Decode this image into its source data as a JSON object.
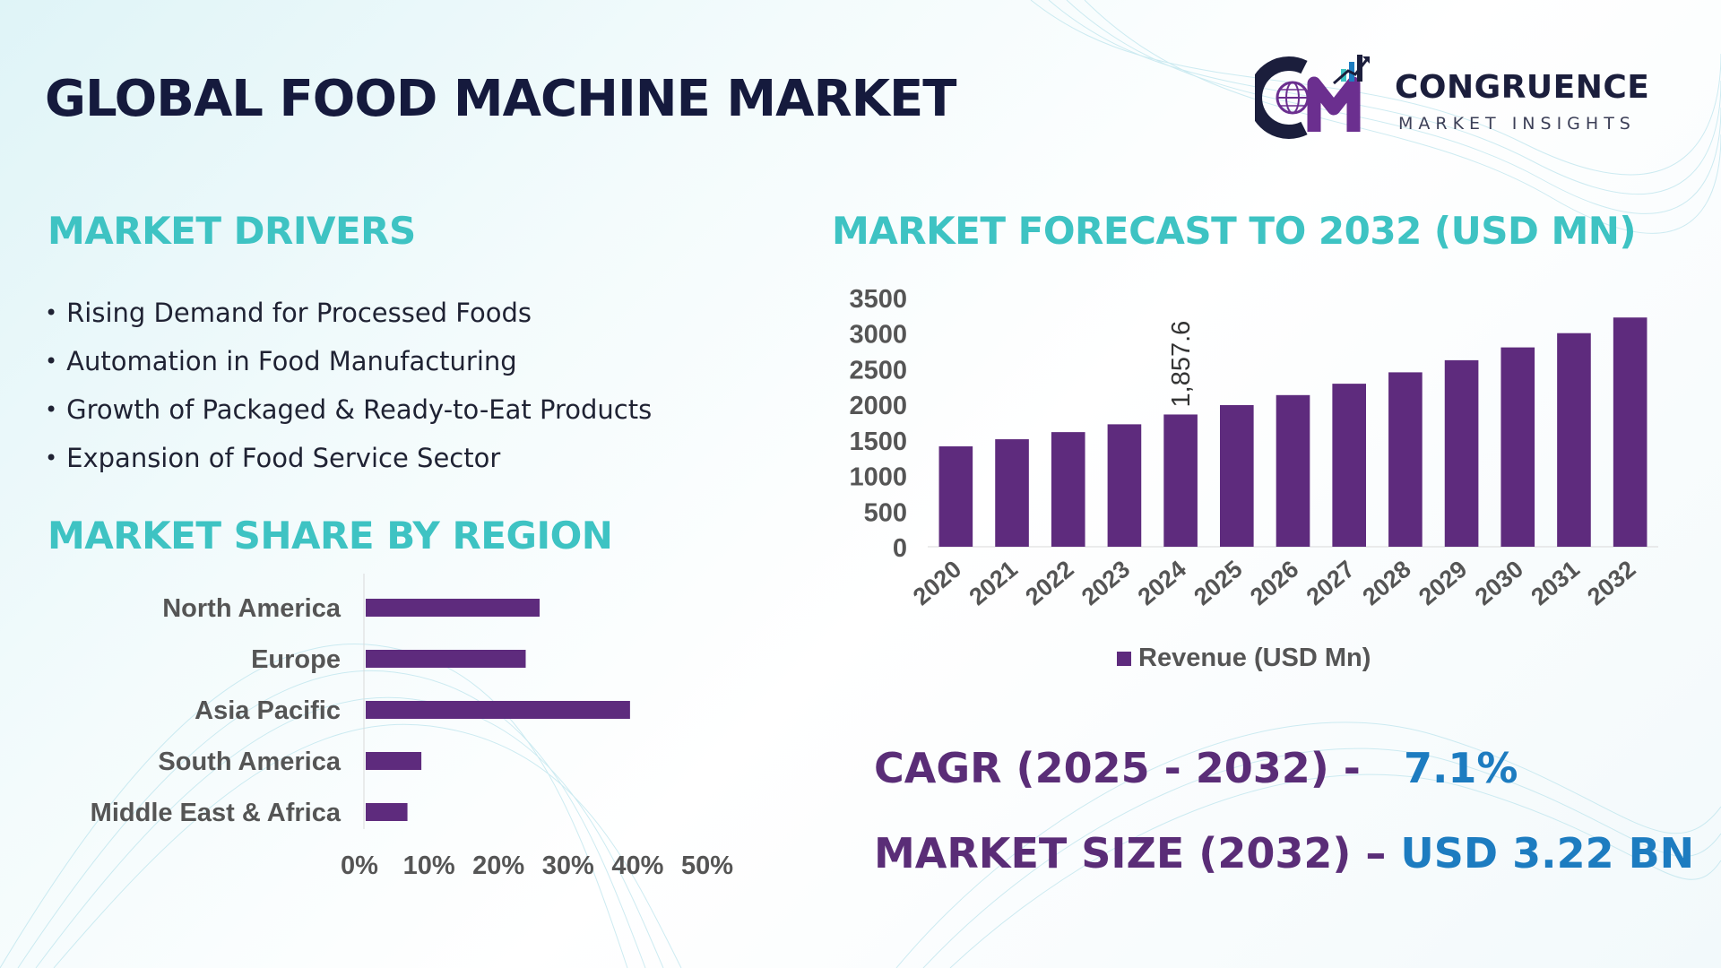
{
  "page": {
    "title": "GLOBAL FOOD MACHINE MARKET"
  },
  "logo": {
    "name": "CONGRUENCE",
    "tagline": "MARKET INSIGHTS",
    "icon": "cm-globe-logo-icon"
  },
  "drivers": {
    "heading": "MARKET DRIVERS",
    "items": [
      "Rising Demand for Processed Foods",
      "Automation in Food Manufacturing",
      "Growth of Packaged & Ready-to-Eat Products",
      "Expansion of Food Service Sector"
    ]
  },
  "region": {
    "heading": "MARKET SHARE BY REGION"
  },
  "forecast": {
    "heading": "MARKET FORECAST TO 2032 (USD MN)"
  },
  "stats": {
    "cagr_label": "CAGR (2025 - 2032) -",
    "cagr_value": "7.1%",
    "size_label": "MARKET SIZE (2032) –",
    "size_value": "USD 3.22 BN"
  },
  "colors": {
    "bar": "#5e2b7d",
    "heading": "#3ec3c3",
    "title": "#151a3d",
    "stat_label": "#5a2d77",
    "stat_value": "#1d7cc0",
    "axis_text": "#555555"
  },
  "chart_data": [
    {
      "type": "bar",
      "orientation": "horizontal",
      "title": "MARKET SHARE BY REGION",
      "categories": [
        "North America",
        "Europe",
        "Asia Pacific",
        "South America",
        "Middle East & Africa"
      ],
      "values": [
        25,
        23,
        38,
        8,
        6
      ],
      "unit": "%",
      "xlim": [
        0,
        50
      ],
      "xticks": [
        "0%",
        "10%",
        "20%",
        "30%",
        "40%",
        "50%"
      ],
      "grid": false
    },
    {
      "type": "bar",
      "orientation": "vertical",
      "title": "MARKET FORECAST TO 2032 (USD MN)",
      "categories": [
        "2020",
        "2021",
        "2022",
        "2023",
        "2024",
        "2025",
        "2026",
        "2027",
        "2028",
        "2029",
        "2030",
        "2031",
        "2032"
      ],
      "series": [
        {
          "name": "Revenue (USD Mn)",
          "values": [
            1410,
            1510,
            1610,
            1720,
            1857.6,
            1990,
            2130,
            2290,
            2450,
            2620,
            2800,
            3000,
            3220
          ]
        }
      ],
      "data_labels": [
        {
          "category": "2024",
          "text": "1,857.6"
        }
      ],
      "ylim": [
        0,
        3500
      ],
      "yticks": [
        0,
        500,
        1000,
        1500,
        2000,
        2500,
        3000,
        3500
      ],
      "legend": "bottom",
      "grid": false
    }
  ]
}
